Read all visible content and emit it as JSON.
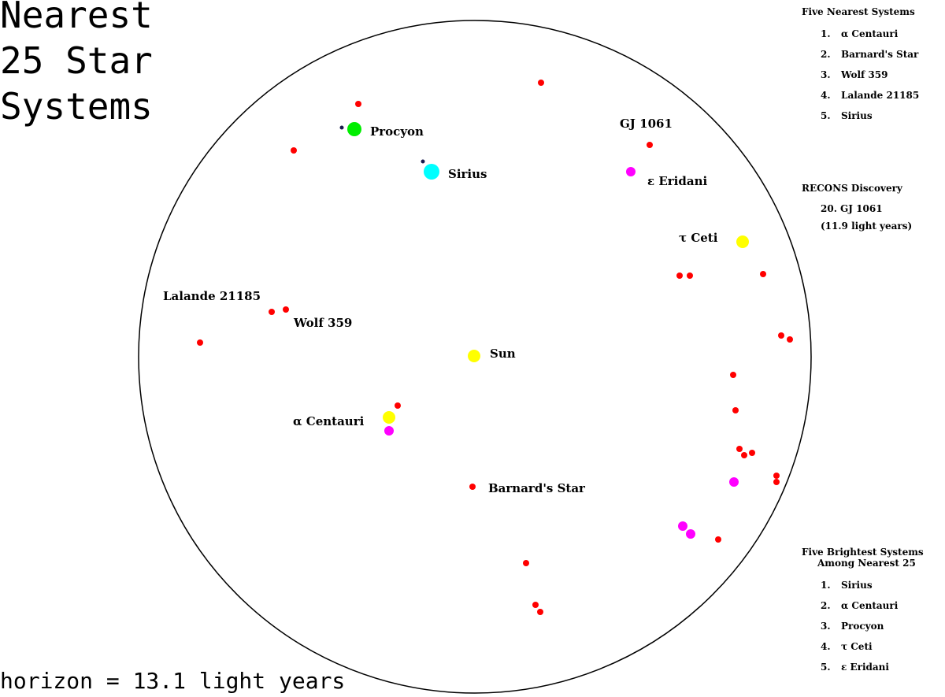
{
  "title": [
    "Nearest",
    "25 Star",
    "Systems"
  ],
  "horizon": "horizon = 13.1 light years",
  "labels": {
    "procyon": "Procyon",
    "sirius": "Sirius",
    "gj1061": "GJ 1061",
    "eps_eridani": "ε Eridani",
    "tau_ceti": "τ Ceti",
    "lalande": "Lalande 21185",
    "wolf": "Wolf 359",
    "sun": "Sun",
    "alpha_cen": "α Centauri",
    "barnard": "Barnard's Star"
  },
  "nearest": {
    "heading": "Five Nearest Systems",
    "items": [
      {
        "num": "1.",
        "name": "α Centauri"
      },
      {
        "num": "2.",
        "name": "Barnard's Star"
      },
      {
        "num": "3.",
        "name": "Wolf 359"
      },
      {
        "num": "4.",
        "name": "Lalande 21185"
      },
      {
        "num": "5.",
        "name": "Sirius"
      }
    ]
  },
  "recons": {
    "heading": "RECONS Discovery",
    "line1": "20. GJ 1061",
    "line2": "(11.9 light years)"
  },
  "brightest": {
    "heading1": "Five Brightest Systems",
    "heading2": "Among Nearest 25",
    "items": [
      {
        "num": "1.",
        "name": "Sirius"
      },
      {
        "num": "2.",
        "name": "α Centauri"
      },
      {
        "num": "3.",
        "name": "Procyon"
      },
      {
        "num": "4.",
        "name": "τ Ceti"
      },
      {
        "num": "5.",
        "name": "ε Eridani"
      }
    ]
  },
  "colors": {
    "red_dwarf": "#ff0000",
    "white_dwarf": "#1a1a4d",
    "procyon": "#00ee00",
    "sirius": "#00ffff",
    "yellow": "#ffff00",
    "magenta": "#ff00ff",
    "horizon_circle": "#000000"
  }
}
